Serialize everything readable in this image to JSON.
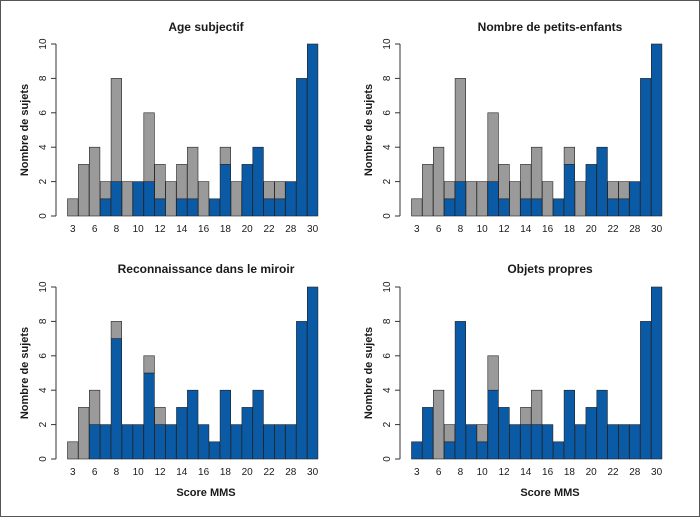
{
  "colors": {
    "blue": "#0b5aa6",
    "grey": "#9a9a9a",
    "axis": "#333333"
  },
  "categories": [
    "3",
    "4",
    "6",
    "7",
    "8",
    "9",
    "10",
    "11",
    "12",
    "13",
    "14",
    "15",
    "16",
    "17",
    "18",
    "19",
    "20",
    "21",
    "22",
    "23",
    "28",
    "29",
    "30"
  ],
  "xtick_labels": [
    "3",
    "6",
    "8",
    "10",
    "12",
    "14",
    "16",
    "18",
    "20",
    "22",
    "28",
    "30"
  ],
  "ytick_labels": [
    "0",
    "2",
    "4",
    "6",
    "8",
    "10"
  ],
  "ylabel": "Nombre de sujets",
  "chart_data": [
    {
      "type": "bar",
      "title": "Age subjectif",
      "xlabel": "",
      "ylabel": "Nombre de sujets",
      "ylim": [
        0,
        10
      ],
      "categories": [
        "3",
        "4",
        "6",
        "7",
        "8",
        "9",
        "10",
        "11",
        "12",
        "13",
        "14",
        "15",
        "16",
        "17",
        "18",
        "19",
        "20",
        "21",
        "22",
        "23",
        "28",
        "29",
        "30"
      ],
      "series": [
        {
          "color": "blue",
          "values": [
            0,
            0,
            0,
            1,
            2,
            0,
            2,
            2,
            1,
            0,
            1,
            1,
            0,
            1,
            3,
            0,
            3,
            4,
            1,
            1,
            2,
            8,
            10
          ]
        },
        {
          "color": "grey",
          "values": [
            1,
            3,
            4,
            1,
            6,
            2,
            0,
            4,
            2,
            2,
            2,
            3,
            2,
            0,
            1,
            2,
            0,
            0,
            1,
            1,
            0,
            0,
            0
          ]
        }
      ]
    },
    {
      "type": "bar",
      "title": "Nombre de petits-enfants",
      "xlabel": "",
      "ylabel": "Nombre de sujets",
      "ylim": [
        0,
        10
      ],
      "categories": [
        "3",
        "4",
        "6",
        "7",
        "8",
        "9",
        "10",
        "11",
        "12",
        "13",
        "14",
        "15",
        "16",
        "17",
        "18",
        "19",
        "20",
        "21",
        "22",
        "23",
        "28",
        "29",
        "30"
      ],
      "series": [
        {
          "color": "blue",
          "values": [
            0,
            0,
            0,
            1,
            2,
            0,
            0,
            2,
            1,
            0,
            1,
            1,
            0,
            1,
            3,
            0,
            3,
            4,
            1,
            1,
            2,
            8,
            10
          ]
        },
        {
          "color": "grey",
          "values": [
            1,
            3,
            4,
            1,
            6,
            2,
            2,
            4,
            2,
            2,
            2,
            3,
            2,
            0,
            1,
            2,
            0,
            0,
            1,
            1,
            0,
            0,
            0
          ]
        }
      ]
    },
    {
      "type": "bar",
      "title": "Reconnaissance dans le miroir",
      "xlabel": "Score MMS",
      "ylabel": "Nombre de sujets",
      "ylim": [
        0,
        10
      ],
      "categories": [
        "3",
        "4",
        "6",
        "7",
        "8",
        "9",
        "10",
        "11",
        "12",
        "13",
        "14",
        "15",
        "16",
        "17",
        "18",
        "19",
        "20",
        "21",
        "22",
        "23",
        "28",
        "29",
        "30"
      ],
      "series": [
        {
          "color": "blue",
          "values": [
            0,
            0,
            2,
            2,
            7,
            2,
            2,
            5,
            2,
            2,
            3,
            4,
            2,
            1,
            4,
            2,
            3,
            4,
            2,
            2,
            2,
            8,
            10
          ]
        },
        {
          "color": "grey",
          "values": [
            1,
            3,
            2,
            0,
            1,
            0,
            0,
            1,
            1,
            0,
            0,
            0,
            0,
            0,
            0,
            0,
            0,
            0,
            0,
            0,
            0,
            0,
            0
          ]
        }
      ]
    },
    {
      "type": "bar",
      "title": "Objets propres",
      "xlabel": "Score MMS",
      "ylabel": "Nombre de sujets",
      "ylim": [
        0,
        10
      ],
      "categories": [
        "3",
        "4",
        "6",
        "7",
        "8",
        "9",
        "10",
        "11",
        "12",
        "13",
        "14",
        "15",
        "16",
        "17",
        "18",
        "19",
        "20",
        "21",
        "22",
        "23",
        "28",
        "29",
        "30"
      ],
      "series": [
        {
          "color": "blue",
          "values": [
            1,
            3,
            0,
            1,
            8,
            2,
            1,
            4,
            3,
            2,
            2,
            2,
            2,
            1,
            4,
            2,
            3,
            4,
            2,
            2,
            2,
            8,
            10
          ]
        },
        {
          "color": "grey",
          "values": [
            0,
            0,
            4,
            1,
            0,
            0,
            1,
            2,
            0,
            0,
            1,
            2,
            0,
            0,
            0,
            0,
            0,
            0,
            0,
            0,
            0,
            0,
            0
          ]
        }
      ]
    }
  ]
}
